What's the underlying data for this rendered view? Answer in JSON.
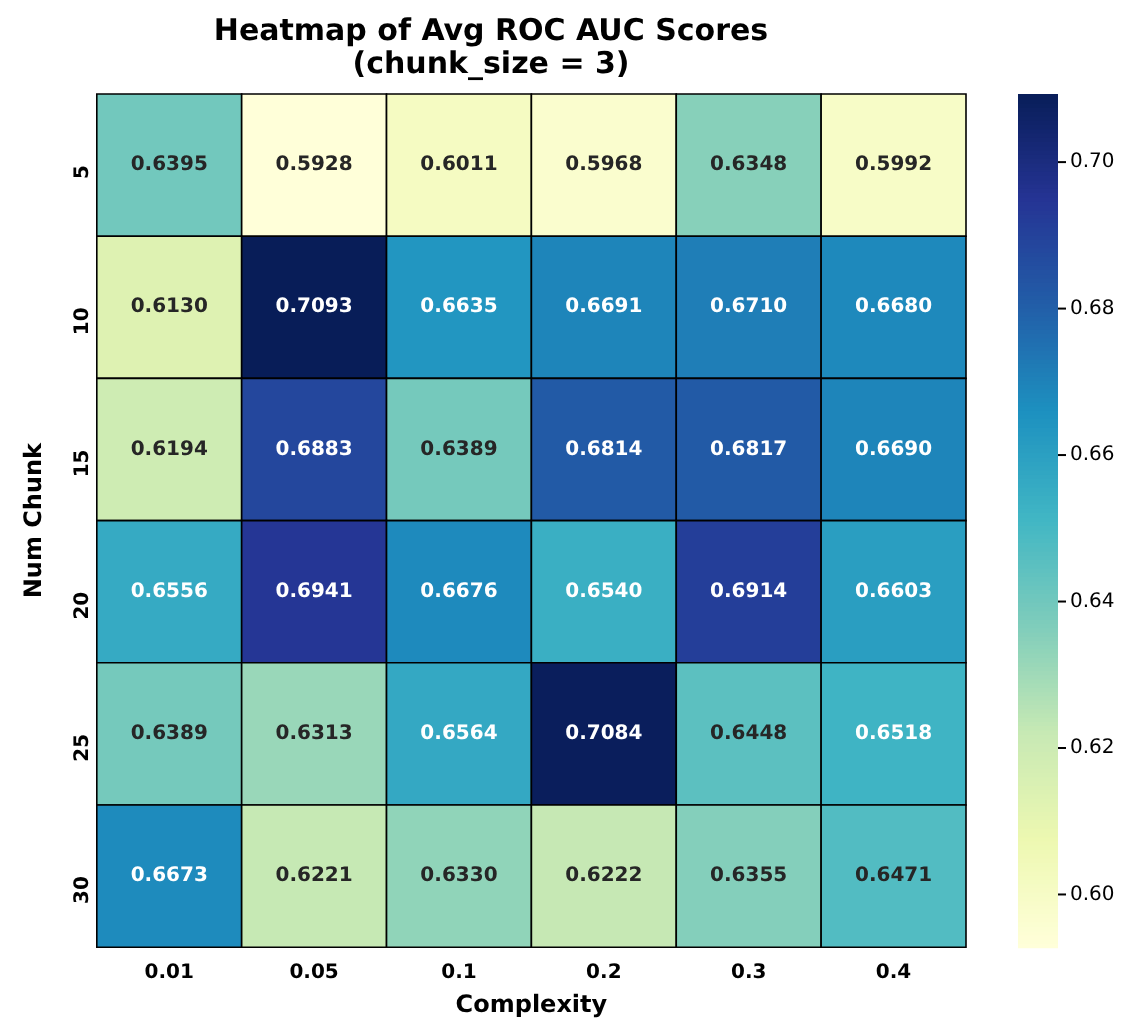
{
  "chart_data": {
    "type": "heatmap",
    "title": "Heatmap of Avg ROC AUC Scores\n(chunk_size = 3)",
    "xlabel": "Complexity",
    "ylabel": "Num Chunk",
    "categories": [
      "0.01",
      "0.05",
      "0.1",
      "0.2",
      "0.3",
      "0.4"
    ],
    "y_categories": [
      "5",
      "10",
      "15",
      "20",
      "25",
      "30"
    ],
    "cells": [
      [
        0.6395,
        0.5928,
        0.6011,
        0.5968,
        0.6348,
        0.5992
      ],
      [
        0.613,
        0.7093,
        0.6635,
        0.6691,
        0.671,
        0.668
      ],
      [
        0.6194,
        0.6883,
        0.6389,
        0.6814,
        0.6817,
        0.669
      ],
      [
        0.6556,
        0.6941,
        0.6676,
        0.654,
        0.6914,
        0.6603
      ],
      [
        0.6389,
        0.6313,
        0.6564,
        0.7084,
        0.6448,
        0.6518
      ],
      [
        0.6673,
        0.6221,
        0.633,
        0.6222,
        0.6355,
        0.6471
      ]
    ],
    "cell_labels": [
      [
        "0.6395",
        "0.5928",
        "0.6011",
        "0.5968",
        "0.6348",
        "0.5992"
      ],
      [
        "0.6130",
        "0.7093",
        "0.6635",
        "0.6691",
        "0.6710",
        "0.6680"
      ],
      [
        "0.6194",
        "0.6883",
        "0.6389",
        "0.6814",
        "0.6817",
        "0.6690"
      ],
      [
        "0.6556",
        "0.6941",
        "0.6676",
        "0.6540",
        "0.6914",
        "0.6603"
      ],
      [
        "0.6389",
        "0.6313",
        "0.6564",
        "0.7084",
        "0.6448",
        "0.6518"
      ],
      [
        "0.6673",
        "0.6221",
        "0.6330",
        "0.6222",
        "0.6355",
        "0.6471"
      ]
    ],
    "clim": [
      0.5928,
      0.7093
    ],
    "cticks": [
      {
        "value": 0.6,
        "label": "0.60"
      },
      {
        "value": 0.62,
        "label": "0.62"
      },
      {
        "value": 0.64,
        "label": "0.64"
      },
      {
        "value": 0.66,
        "label": "0.66"
      },
      {
        "value": 0.68,
        "label": "0.68"
      },
      {
        "value": 0.7,
        "label": "0.70"
      }
    ],
    "data_labels": true
  }
}
